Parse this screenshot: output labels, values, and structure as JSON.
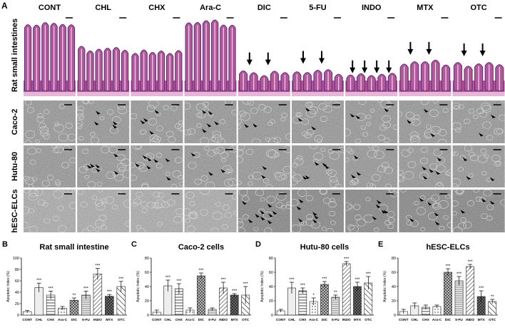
{
  "panel_letters": {
    "a": "A",
    "b": "B",
    "c": "C",
    "d": "D",
    "e": "E"
  },
  "drug_labels": [
    "CONT",
    "CHL",
    "CHX",
    "Ara-C",
    "DIC",
    "5-FU",
    "INDO",
    "MTX",
    "OTC"
  ],
  "row_labels": [
    "Rat small intestines",
    "Caco-2",
    "Hutu-80",
    "hESC-ELCs"
  ],
  "arrow_counts": [
    0,
    0,
    0,
    0,
    2,
    2,
    4,
    2,
    2
  ],
  "arrowhead_counts": [
    [
      0,
      4,
      4,
      5,
      2,
      3,
      3,
      3,
      2
    ],
    [
      0,
      6,
      7,
      3,
      2,
      5,
      3,
      5,
      3
    ],
    [
      0,
      0,
      0,
      0,
      9,
      6,
      5,
      5,
      3
    ]
  ],
  "chart_data": [
    {
      "type": "bar",
      "title": "Rat small intestine",
      "ylabel": "Apoptotic Index (%)",
      "ylim": [
        0,
        100
      ],
      "yticks": [
        0,
        20,
        40,
        60,
        80,
        100
      ],
      "categories": [
        "CONT",
        "CHL",
        "CHX",
        "Ara-C",
        "DIC",
        "5-FU",
        "INDO",
        "MTX",
        "OTC"
      ],
      "values": [
        6,
        48,
        35,
        12,
        26,
        35,
        72,
        33,
        50
      ],
      "errors": [
        2,
        8,
        7,
        3,
        4,
        7,
        10,
        3,
        9
      ],
      "significance": [
        "",
        "***",
        "***",
        "",
        "**",
        "***",
        "***",
        "***",
        "***"
      ]
    },
    {
      "type": "bar",
      "title": "Caco-2 cells",
      "ylabel": "Apoptotic Index (%)",
      "ylim": [
        0,
        80
      ],
      "yticks": [
        0,
        20,
        40,
        60,
        80
      ],
      "categories": [
        "CONT",
        "CHL",
        "CHX",
        "Ara-C",
        "DIC",
        "5-FU",
        "INDO",
        "MTX",
        "OTC"
      ],
      "values": [
        4,
        41,
        37,
        7,
        55,
        8,
        38,
        28,
        28
      ],
      "errors": [
        3,
        8,
        7,
        3,
        4,
        2,
        8,
        2,
        12
      ],
      "significance": [
        "",
        "***",
        "***",
        "",
        "***",
        "",
        "***",
        "***",
        "***"
      ]
    },
    {
      "type": "bar",
      "title": "Hutu-80 cells",
      "ylabel": "Apoptotic Index (%)",
      "ylim": [
        0,
        80
      ],
      "yticks": [
        0,
        20,
        40,
        60,
        80
      ],
      "categories": [
        "CONT",
        "CHL",
        "CHX",
        "Ara-C",
        "DIC",
        "5-FU",
        "INDO",
        "MTX",
        "OTC"
      ],
      "values": [
        6,
        38,
        34,
        19,
        43,
        25,
        72,
        40,
        45
      ],
      "errors": [
        2,
        8,
        4,
        5,
        4,
        3,
        3,
        6,
        9
      ],
      "significance": [
        "",
        "***",
        "***",
        "*",
        "***",
        "**",
        "***",
        "***",
        "***"
      ]
    },
    {
      "type": "bar",
      "title": "hESC-ELCs",
      "ylabel": "Apoptotic Index (%)",
      "ylim": [
        0,
        80
      ],
      "yticks": [
        0,
        20,
        40,
        60,
        80
      ],
      "categories": [
        "CONT",
        "CHL",
        "CHX",
        "Ara-C",
        "DIC",
        "5-FU",
        "INDO",
        "MTX",
        "OTC"
      ],
      "values": [
        5,
        13,
        11,
        12,
        60,
        48,
        68,
        26,
        19
      ],
      "errors": [
        3,
        4,
        3,
        2,
        5,
        6,
        3,
        8,
        3
      ],
      "significance": [
        "",
        "",
        "",
        "",
        "***",
        "***",
        "***",
        "***",
        "**"
      ]
    }
  ],
  "colors": {
    "tissue_background": "#ffffff",
    "tissue_stain": "#b0589a",
    "tissue_dark": "#5d2a78",
    "cell_background": "#a9a9a9",
    "cell_line": "#d9d9d9",
    "bar_stroke": "#222222"
  }
}
